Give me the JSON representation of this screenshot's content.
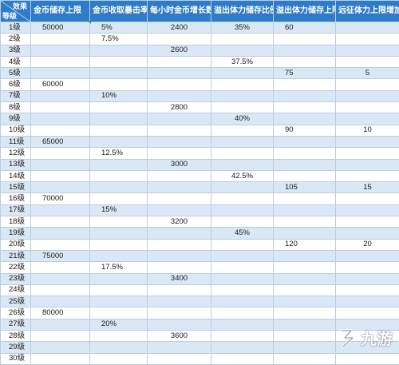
{
  "table": {
    "corner_top": "效果",
    "corner_bottom": "等级",
    "headers": [
      "金币储存上限",
      "金币收取暴击率",
      "每小时金币增长数",
      "溢出体力储存比例",
      "溢出体力储存上限",
      "远征体力上限增加"
    ],
    "rows": [
      {
        "level": "1级",
        "cells": [
          "50000",
          "5%",
          "2400",
          "35%",
          "60",
          ""
        ]
      },
      {
        "level": "2级",
        "cells": [
          "",
          "7.5%",
          "",
          "",
          "",
          ""
        ]
      },
      {
        "level": "3级",
        "cells": [
          "",
          "",
          "2600",
          "",
          "",
          ""
        ]
      },
      {
        "level": "4级",
        "cells": [
          "",
          "",
          "",
          "37.5%",
          "",
          ""
        ]
      },
      {
        "level": "5级",
        "cells": [
          "",
          "",
          "",
          "",
          "75",
          "5"
        ]
      },
      {
        "level": "6级",
        "cells": [
          "60000",
          "",
          "",
          "",
          "",
          ""
        ]
      },
      {
        "level": "7级",
        "cells": [
          "",
          "10%",
          "",
          "",
          "",
          ""
        ]
      },
      {
        "level": "8级",
        "cells": [
          "",
          "",
          "2800",
          "",
          "",
          ""
        ]
      },
      {
        "level": "9级",
        "cells": [
          "",
          "",
          "",
          "40%",
          "",
          ""
        ]
      },
      {
        "level": "10级",
        "cells": [
          "",
          "",
          "",
          "",
          "90",
          "10"
        ]
      },
      {
        "level": "11级",
        "cells": [
          "65000",
          "",
          "",
          "",
          "",
          ""
        ]
      },
      {
        "level": "12级",
        "cells": [
          "",
          "12.5%",
          "",
          "",
          "",
          ""
        ]
      },
      {
        "level": "13级",
        "cells": [
          "",
          "",
          "3000",
          "",
          "",
          ""
        ]
      },
      {
        "level": "14级",
        "cells": [
          "",
          "",
          "",
          "42.5%",
          "",
          ""
        ]
      },
      {
        "level": "15级",
        "cells": [
          "",
          "",
          "",
          "",
          "105",
          "15"
        ]
      },
      {
        "level": "16级",
        "cells": [
          "70000",
          "",
          "",
          "",
          "",
          ""
        ]
      },
      {
        "level": "17级",
        "cells": [
          "",
          "15%",
          "",
          "",
          "",
          ""
        ]
      },
      {
        "level": "18级",
        "cells": [
          "",
          "",
          "3200",
          "",
          "",
          ""
        ]
      },
      {
        "level": "19级",
        "cells": [
          "",
          "",
          "",
          "45%",
          "",
          ""
        ]
      },
      {
        "level": "20级",
        "cells": [
          "",
          "",
          "",
          "",
          "120",
          "20"
        ]
      },
      {
        "level": "21级",
        "cells": [
          "75000",
          "",
          "",
          "",
          "",
          ""
        ]
      },
      {
        "level": "22级",
        "cells": [
          "",
          "17.5%",
          "",
          "",
          "",
          ""
        ]
      },
      {
        "level": "23级",
        "cells": [
          "",
          "",
          "3400",
          "",
          "",
          ""
        ]
      },
      {
        "level": "24级",
        "cells": [
          "",
          "",
          "",
          "",
          "",
          ""
        ]
      },
      {
        "level": "25级",
        "cells": [
          "",
          "",
          "",
          "",
          "",
          ""
        ]
      },
      {
        "level": "26级",
        "cells": [
          "80000",
          "",
          "",
          "",
          "",
          ""
        ]
      },
      {
        "level": "27级",
        "cells": [
          "",
          "20%",
          "",
          "",
          "",
          ""
        ]
      },
      {
        "level": "28级",
        "cells": [
          "",
          "",
          "3600",
          "",
          "",
          ""
        ]
      },
      {
        "level": "29级",
        "cells": [
          "",
          "",
          "",
          "",
          "",
          ""
        ]
      },
      {
        "level": "30级",
        "cells": [
          "",
          "",
          "",
          "",
          "",
          ""
        ]
      }
    ]
  },
  "watermark": {
    "text": "九游"
  },
  "colors": {
    "header_bg": "#2e7bc7",
    "row_alt_bg": "#dae8f5",
    "border": "#b9cee2"
  }
}
